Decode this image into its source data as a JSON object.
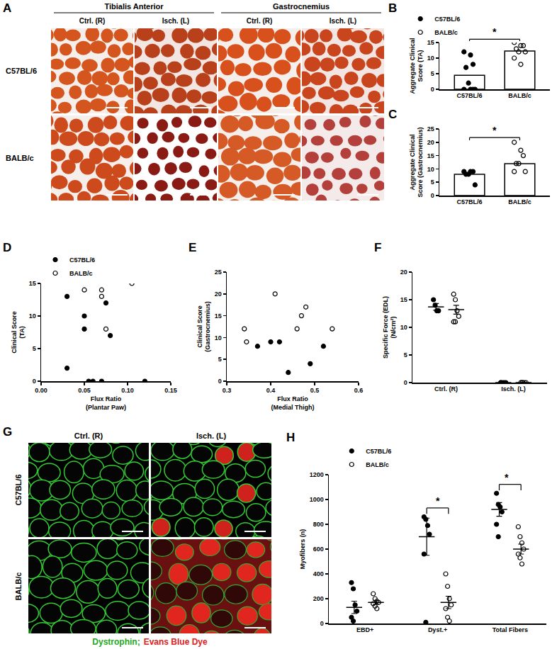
{
  "image_panels": [
    {
      "letter": "A",
      "column_groups": [
        "Tibialis Anterior",
        "Gastrocnemius"
      ],
      "columns": [
        "Ctrl. (R)",
        "Isch. (L)",
        "Ctrl. (R)",
        "Isch. (L)"
      ],
      "rows": [
        "C57BL/6",
        "BALB/c"
      ]
    },
    {
      "letter": "G",
      "columns": [
        "Ctrl. (R)",
        "Isch. (L)"
      ],
      "rows": [
        "C57BL/6",
        "BALB/c"
      ],
      "caption": [
        {
          "text": "Dystrophin;",
          "color": "#22aa22"
        },
        {
          "text": "Evans Blue Dye",
          "color": "#dd2222"
        }
      ]
    }
  ],
  "chart_data": [
    {
      "letter": "B",
      "type": "bar",
      "ylabel": "Aggregate Clinical\nScore (TA)",
      "categories": [
        "C57BL/6",
        "BALB/c"
      ],
      "values": [
        4.5,
        12.3
      ],
      "points": [
        [
          12,
          11,
          8,
          7,
          2,
          0,
          0,
          0,
          0
        ],
        [
          15,
          14,
          14,
          13,
          12,
          12,
          10,
          8
        ]
      ],
      "series": [
        {
          "name": "C57BL/6",
          "marker": "circle"
        },
        {
          "name": "BALB/c",
          "marker": "circle-open"
        }
      ],
      "ylim": [
        0,
        15
      ],
      "yticks": [
        0,
        5,
        10,
        15
      ],
      "legend": "top left",
      "grid": false,
      "significance": [
        {
          "between": [
            0,
            1
          ],
          "label": "*"
        }
      ]
    },
    {
      "letter": "C",
      "type": "bar",
      "ylabel": "Aggregate Clinical\nScore (Gastrocnemius)",
      "categories": [
        "C57BL/6",
        "BALB/c"
      ],
      "values": [
        8,
        12
      ],
      "points": [
        [
          9,
          9,
          9,
          8,
          8,
          4
        ],
        [
          20,
          17,
          15,
          12,
          12,
          9,
          9
        ]
      ],
      "series": [
        {
          "name": "C57BL/6",
          "marker": "circle"
        },
        {
          "name": "BALB/c",
          "marker": "circle-open"
        }
      ],
      "ylim": [
        0,
        25
      ],
      "yticks": [
        0,
        5,
        10,
        15,
        20,
        25
      ],
      "grid": false,
      "significance": [
        {
          "between": [
            0,
            1
          ],
          "label": "*"
        }
      ]
    },
    {
      "letter": "D",
      "type": "scatter",
      "xlabel": "Flux Ratio\n(Plantar Paw)",
      "ylabel": "Clinical Score\n(TA)",
      "series": [
        {
          "name": "C57BL/6",
          "marker": "circle",
          "x": [
            0.03,
            0.03,
            0.05,
            0.05,
            0.055,
            0.06,
            0.07,
            0.075,
            0.08,
            0.12
          ],
          "values": [
            13,
            2,
            10,
            8,
            0,
            0,
            0,
            12,
            7,
            0
          ]
        },
        {
          "name": "BALB/c",
          "marker": "circle-open",
          "x": [
            0.05,
            0.07,
            0.07,
            0.075,
            0.105
          ],
          "values": [
            14,
            14,
            13,
            8,
            15
          ]
        }
      ],
      "xlim": [
        0,
        0.15
      ],
      "xticks": [
        {
          "value": 0,
          "label": "0.00"
        },
        {
          "value": 0.05,
          "label": "0.05"
        },
        {
          "value": 0.1,
          "label": "0.10"
        },
        {
          "value": 0.15,
          "label": "0.15"
        }
      ],
      "ylim": [
        0,
        15
      ],
      "yticks": [
        0,
        5,
        10,
        15
      ],
      "legend": "top left",
      "grid": false
    },
    {
      "letter": "E",
      "type": "scatter",
      "xlabel": "Flux Ratio\n(Medial Thigh)",
      "ylabel": "Clinical Score\n(Gastrocnemius)",
      "series": [
        {
          "name": "C57BL/6",
          "marker": "circle",
          "x": [
            0.37,
            0.4,
            0.42,
            0.44,
            0.49,
            0.52
          ],
          "values": [
            8,
            9,
            9,
            2,
            4,
            8
          ]
        },
        {
          "name": "BALB/c",
          "marker": "circle-open",
          "x": [
            0.34,
            0.345,
            0.41,
            0.46,
            0.47,
            0.48,
            0.54
          ],
          "values": [
            12,
            9,
            20,
            12,
            15,
            17,
            12
          ]
        }
      ],
      "xlim": [
        0.3,
        0.6
      ],
      "xticks": [
        0.3,
        0.4,
        0.5,
        0.6
      ],
      "ylim": [
        0,
        25
      ],
      "yticks": [
        0,
        5,
        10,
        15,
        20,
        25
      ],
      "grid": false
    },
    {
      "letter": "F",
      "type": "dot_plot",
      "ylabel": "Specific Force (EDL)\n(N/cm²)",
      "categories": [
        "Ctrl. (R)",
        "Isch. (L)"
      ],
      "series": [
        {
          "name": "C57BL/6",
          "marker": "circle",
          "values": [
            13.7,
            0
          ],
          "sem": [
            0.6,
            0
          ],
          "points": [
            [
              15,
              14,
              13,
              13
            ],
            [
              0,
              0,
              0,
              0,
              0
            ]
          ]
        },
        {
          "name": "BALB/c",
          "marker": "circle-open",
          "values": [
            13.2,
            0
          ],
          "sem": [
            0.8,
            0
          ],
          "points": [
            [
              16,
              15,
              13,
              12,
              11,
              11
            ],
            [
              0,
              0,
              0,
              0,
              0,
              0
            ]
          ]
        }
      ],
      "ylim": [
        0,
        20
      ],
      "yticks": [
        0,
        5,
        10,
        15,
        20
      ],
      "grid": false
    },
    {
      "letter": "H",
      "type": "dot_plot",
      "ylabel": "Myofibers (n)",
      "categories": [
        "EBD+",
        "Dyst.+",
        "Total Fibers"
      ],
      "series": [
        {
          "name": "C57BL/6",
          "marker": "circle",
          "values": [
            130,
            700,
            920
          ],
          "sem": [
            50,
            150,
            55
          ],
          "points": [
            [
              330,
              280,
              150,
              100,
              50,
              20
            ],
            [
              860,
              840,
              790,
              720,
              560,
              10
            ],
            [
              1050,
              960,
              940,
              900,
              800,
              700
            ]
          ]
        },
        {
          "name": "BALB/c",
          "marker": "circle-open",
          "values": [
            170,
            170,
            600
          ],
          "sem": [
            15,
            50,
            40
          ],
          "points": [
            [
              240,
              200,
              180,
              170,
              160,
              140,
              120
            ],
            [
              400,
              300,
              200,
              150,
              120,
              50,
              20
            ],
            [
              780,
              700,
              650,
              600,
              560,
              530,
              480
            ]
          ]
        }
      ],
      "ylim": [
        0,
        1200
      ],
      "yticks": [
        0,
        200,
        400,
        600,
        800,
        1000,
        1200
      ],
      "legend": "top left",
      "grid": false,
      "significance": [
        {
          "category": 1,
          "label": "*"
        },
        {
          "category": 2,
          "label": "*"
        }
      ]
    }
  ]
}
